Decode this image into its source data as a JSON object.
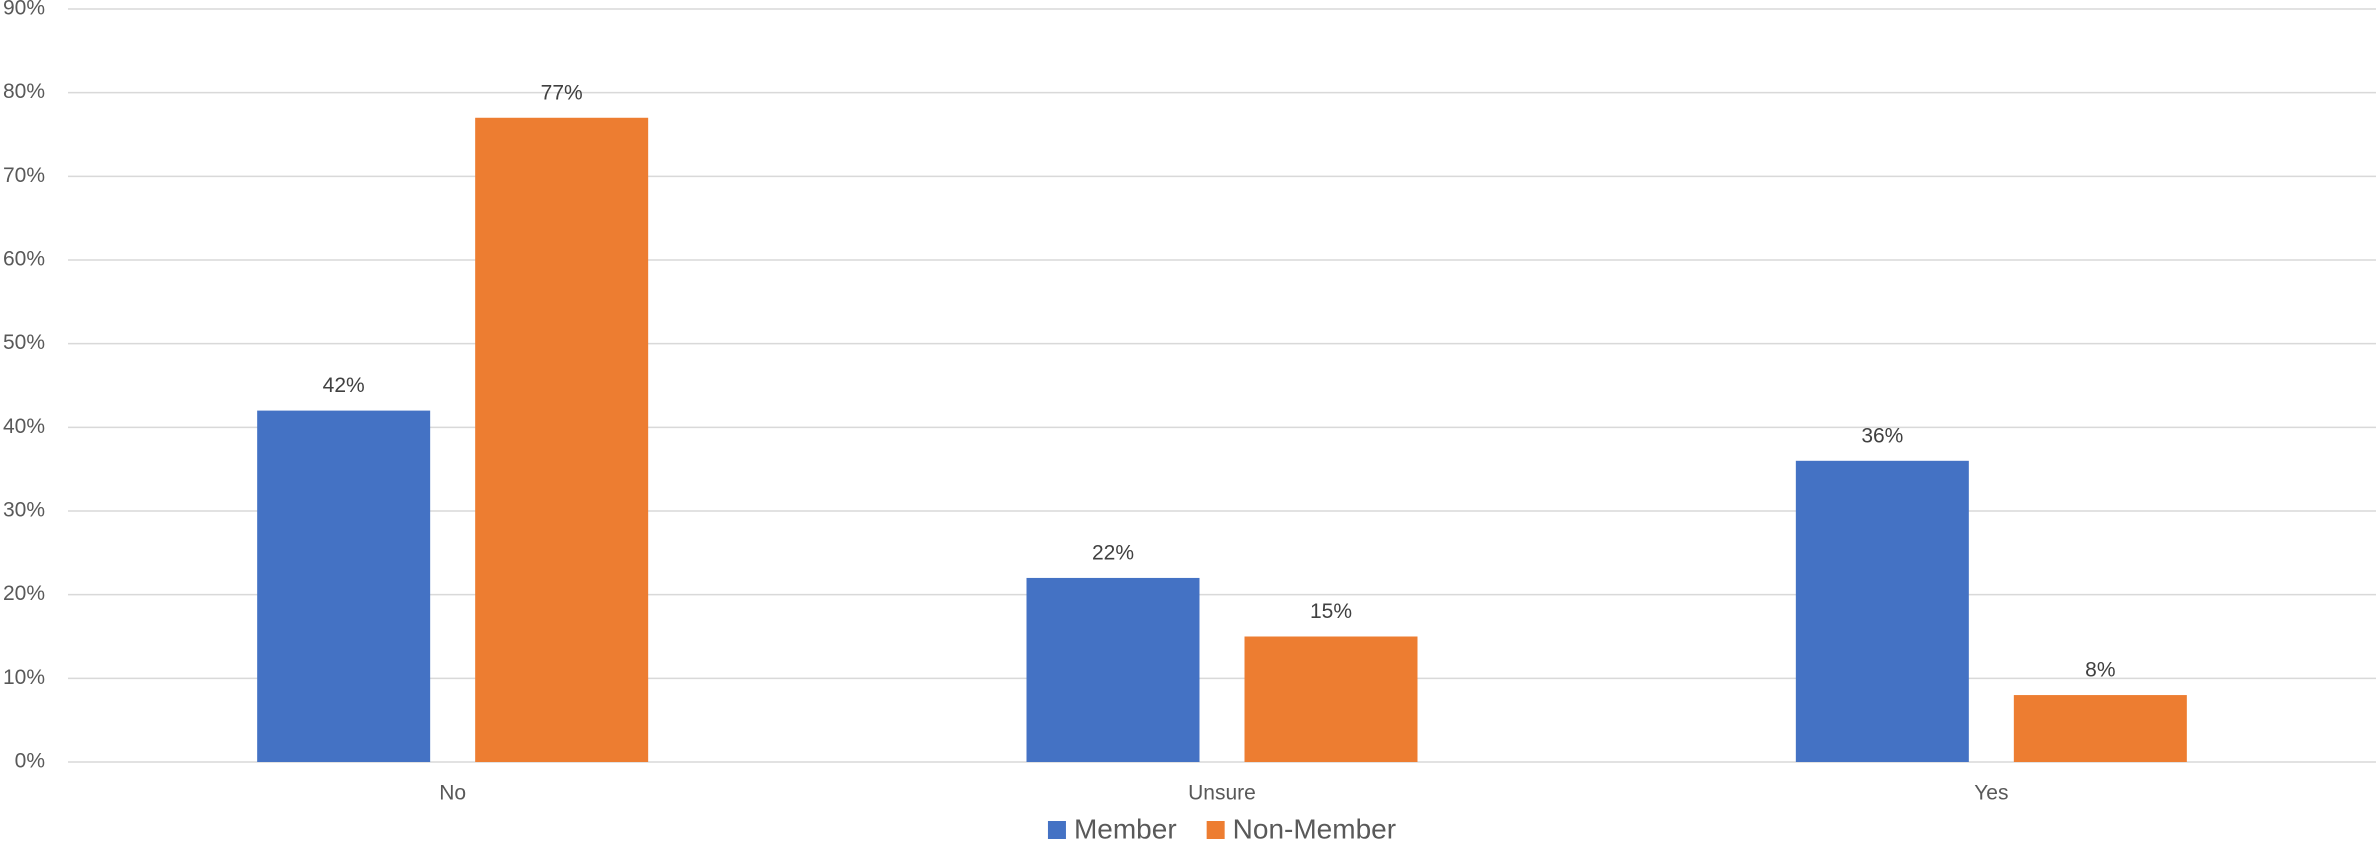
{
  "chart_data": {
    "type": "bar",
    "categories": [
      "No",
      "Unsure",
      "Yes"
    ],
    "series": [
      {
        "name": "Member",
        "color": "#4472c4",
        "values": [
          42,
          22,
          36
        ],
        "value_labels": [
          "42%",
          "22%",
          "36%"
        ]
      },
      {
        "name": "Non-Member",
        "color": "#ed7d31",
        "values": [
          77,
          15,
          8
        ],
        "value_labels": [
          "77%",
          "15%",
          "8%"
        ]
      }
    ],
    "ylim": [
      0,
      90
    ],
    "yticks": [
      {
        "value": 0,
        "label": "0%"
      },
      {
        "value": 10,
        "label": "10%"
      },
      {
        "value": 20,
        "label": "20%"
      },
      {
        "value": 30,
        "label": "30%"
      },
      {
        "value": 40,
        "label": "40%"
      },
      {
        "value": 50,
        "label": "50%"
      },
      {
        "value": 60,
        "label": "60%"
      },
      {
        "value": 70,
        "label": "70%"
      },
      {
        "value": 80,
        "label": "80%"
      },
      {
        "value": 90,
        "label": "90%"
      }
    ],
    "grid": true,
    "legend": "bottom"
  }
}
